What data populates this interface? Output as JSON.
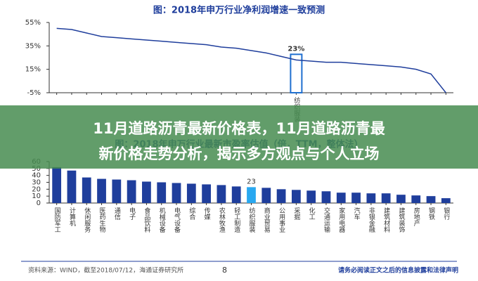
{
  "chart_data": [
    {
      "type": "line",
      "title": "图：2018年申万行业净利润增速一致预测",
      "categories": [
        null,
        null,
        null,
        null,
        null,
        null,
        null,
        null,
        null,
        null,
        null,
        null,
        null,
        null,
        null,
        null,
        "纺织服装",
        null,
        null,
        null,
        null,
        null,
        null,
        null,
        null,
        null,
        null
      ],
      "series": [
        {
          "name": "净利润增速",
          "color": "#1f3e9c",
          "values": [
            50,
            49,
            46,
            43,
            42,
            41,
            40,
            39,
            38,
            37,
            36,
            34,
            33,
            31,
            29,
            26,
            23,
            22,
            21,
            21,
            20,
            19,
            18,
            17,
            15,
            11,
            -5
          ],
          "value_labels": [
            null,
            null,
            null,
            null,
            null,
            null,
            null,
            null,
            null,
            null,
            null,
            null,
            null,
            null,
            null,
            null,
            "23%",
            null,
            null,
            null,
            null,
            null,
            null,
            null,
            null,
            null,
            null
          ]
        }
      ],
      "highlight_color": "#1f6fd0",
      "ylim": [
        -5,
        55
      ],
      "yticks": [
        {
          "value": -5,
          "label": "-5%"
        },
        {
          "value": 15,
          "label": "15%"
        },
        {
          "value": 35,
          "label": "35%"
        },
        {
          "value": 55,
          "label": "55%"
        }
      ]
    },
    {
      "type": "bar",
      "title": "图：2018年申万行业最新市盈率估值（倍，TTM，整体法）",
      "categories": [
        "国防军工",
        "计算机",
        "休闲服务",
        "医药生物",
        "通信",
        "电子",
        "食品饮料",
        "机械设备",
        "电气设备",
        "综合",
        "传媒",
        "农林牧渔",
        "轻工制造",
        "纺织服装",
        "商业贸易",
        "公用事业",
        "采掘",
        "化工",
        "交通运输",
        "家用电器",
        "汽车",
        "非银金融",
        "建筑材料",
        "建筑装饰",
        "房地产",
        "钢铁",
        "银行"
      ],
      "series": [
        {
          "name": "市盈率",
          "color": "#1f3e9c",
          "values": [
            52,
            47,
            37,
            35,
            34,
            33,
            31,
            30,
            29,
            28,
            27,
            26,
            24,
            23,
            22,
            20,
            19,
            18,
            17,
            15,
            15,
            14,
            14,
            12,
            11,
            10,
            7
          ],
          "value_labels": [
            null,
            null,
            null,
            null,
            null,
            null,
            null,
            null,
            null,
            null,
            null,
            null,
            null,
            "23",
            null,
            null,
            null,
            null,
            null,
            null,
            null,
            null,
            null,
            null,
            null,
            null,
            null
          ]
        }
      ],
      "highlight_color": "#29a8f0",
      "ylim": [
        0,
        60
      ],
      "yticks": [
        0,
        10,
        20,
        30,
        40,
        50,
        60
      ]
    }
  ],
  "headline": [
    "11月道路沥青最新价格表，11月道路沥青最",
    "新价格走势分析，揭示多方观点与个人立场"
  ],
  "footer": {
    "source": "资料来源：WIND，截至2018/07/12，海通证券研究所",
    "page": "8",
    "disclaimer": "请务必阅读正文之后的信息披露和法律声明"
  }
}
